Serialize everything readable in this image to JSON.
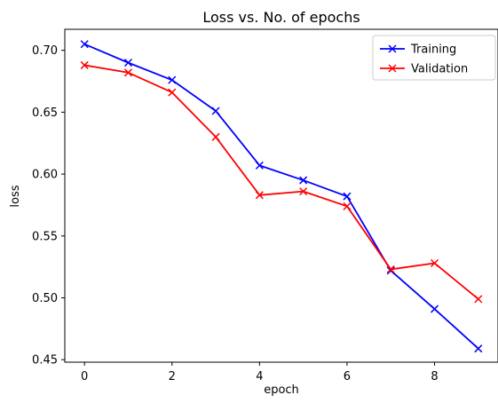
{
  "chart_data": {
    "type": "line",
    "title": "Loss vs. No. of epochs",
    "xlabel": "epoch",
    "ylabel": "loss",
    "x": [
      0,
      1,
      2,
      3,
      4,
      5,
      6,
      7,
      8,
      9
    ],
    "xlim": [
      -0.45,
      9.45
    ],
    "ylim": [
      0.448,
      0.717
    ],
    "xticks": [
      0,
      2,
      4,
      6,
      8
    ],
    "yticks": [
      0.45,
      0.5,
      0.55,
      0.6,
      0.65,
      0.7
    ],
    "xtick_labels": [
      "0",
      "2",
      "4",
      "6",
      "8"
    ],
    "ytick_labels": [
      "0.45",
      "0.50",
      "0.55",
      "0.60",
      "0.65",
      "0.70"
    ],
    "grid": false,
    "legend_position": "top-right",
    "series": [
      {
        "name": "Training",
        "color": "#0000ff",
        "marker": "x",
        "values": [
          0.705,
          0.69,
          0.676,
          0.651,
          0.607,
          0.595,
          0.582,
          0.522,
          0.491,
          0.459
        ]
      },
      {
        "name": "Validation",
        "color": "#ff0000",
        "marker": "x",
        "values": [
          0.688,
          0.682,
          0.666,
          0.63,
          0.583,
          0.586,
          0.574,
          0.523,
          0.528,
          0.499
        ]
      }
    ]
  }
}
